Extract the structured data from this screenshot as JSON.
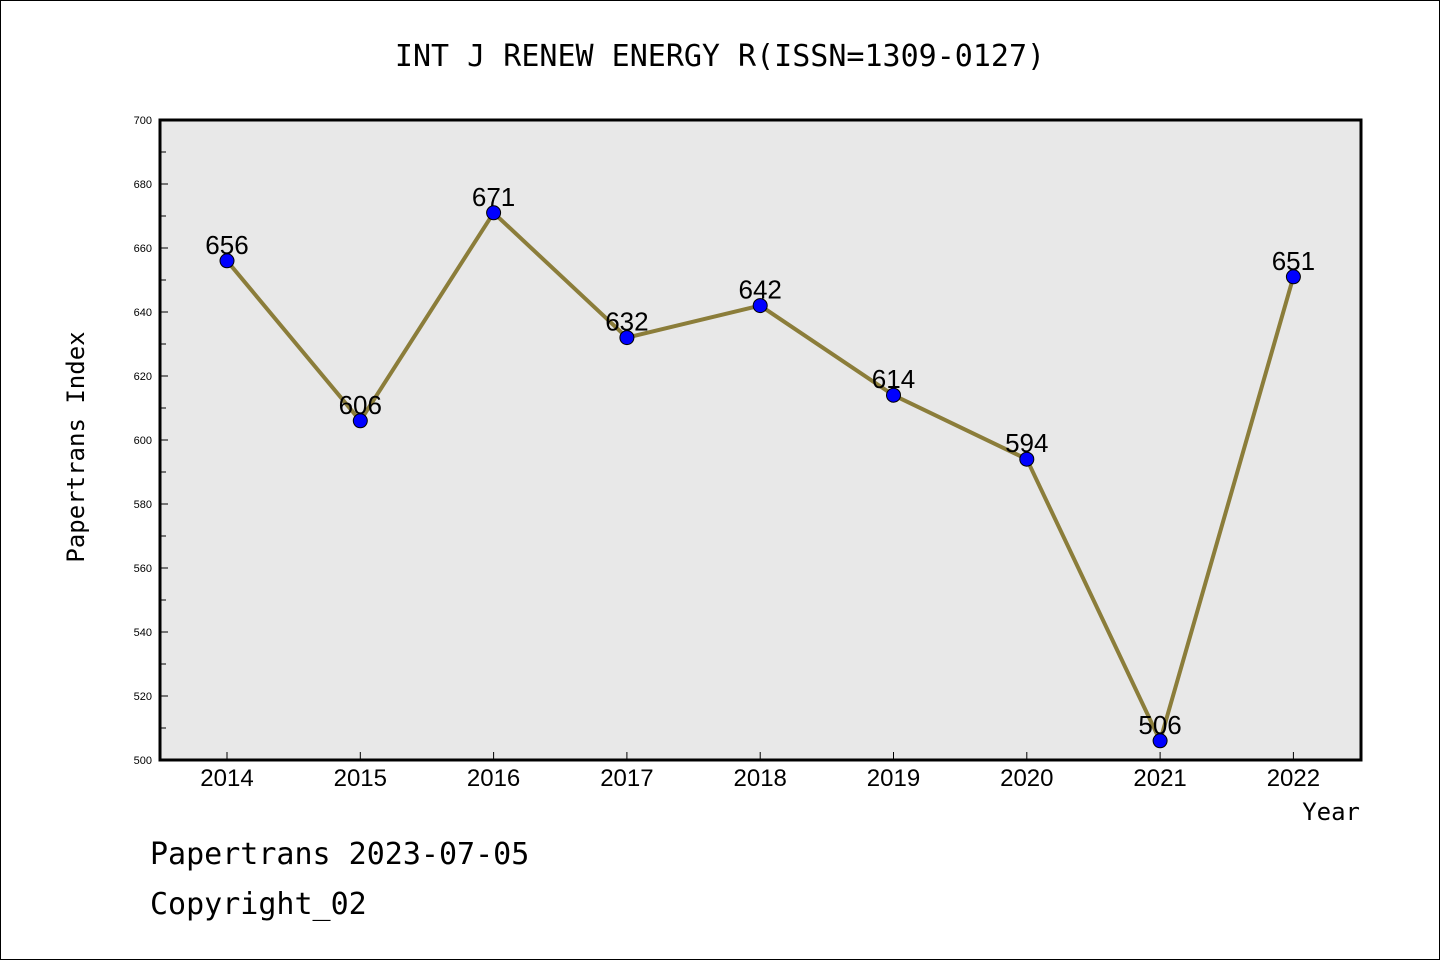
{
  "chart_data": {
    "type": "line",
    "title": "INT J RENEW ENERGY R(ISSN=1309-0127)",
    "xlabel": "Year",
    "ylabel": "Papertrans Index",
    "categories": [
      "2014",
      "2015",
      "2016",
      "2017",
      "2018",
      "2019",
      "2020",
      "2021",
      "2022"
    ],
    "series": [
      {
        "values": [
          656,
          606,
          671,
          632,
          642,
          614,
          594,
          506,
          651
        ],
        "labels": [
          "656",
          "606",
          "671",
          "632",
          "642",
          "614",
          "594",
          "506",
          "651"
        ]
      }
    ],
    "ylim": [
      500,
      700
    ],
    "yticks": [
      "500",
      "520",
      "540",
      "560",
      "580",
      "600",
      "620",
      "640",
      "660",
      "680",
      "700"
    ],
    "grid": false,
    "line_color": "#8b7d3a",
    "marker_color": "#0000ff",
    "plot_background": "#e8e8e8"
  },
  "footer": {
    "line1": "Papertrans 2023-07-05",
    "line2": "Copyright_02"
  }
}
